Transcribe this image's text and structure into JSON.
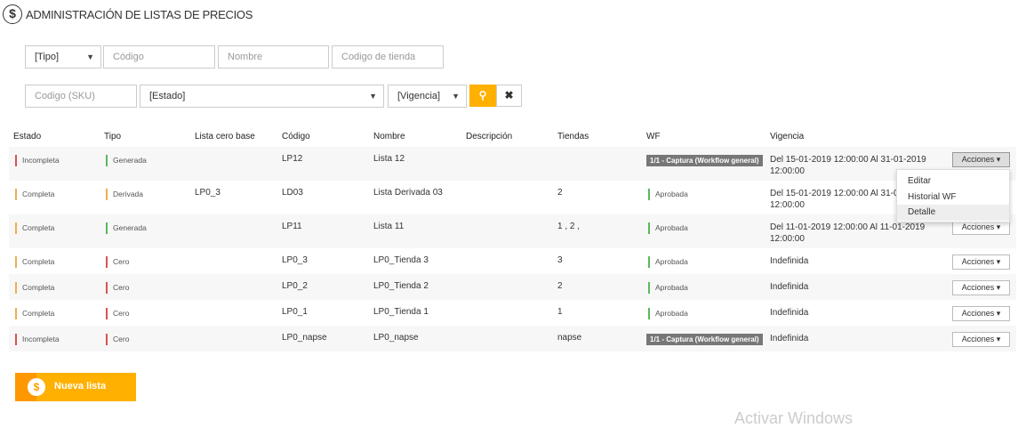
{
  "header": {
    "icon": "dollar-icon",
    "title": "ADMINISTRACIÓN DE LISTAS DE PRECIOS"
  },
  "filters": {
    "tipo": "[Tipo]",
    "codigo_ph": "Código",
    "nombre_ph": "Nombre",
    "tienda_ph": "Codigo de tienda",
    "sku_ph": "Codigo (SKU)",
    "estado": "[Estado]",
    "vigencia": "[Vigencia]",
    "search_icon": "search-icon",
    "clear_icon": "close-icon"
  },
  "table": {
    "columns": [
      "Estado",
      "Tipo",
      "Lista cero base",
      "Código",
      "Nombre",
      "Descripción",
      "Tiendas",
      "WF",
      "Vigencia"
    ],
    "rows": [
      {
        "estado": "Incompleta",
        "estado_color": "#d9534f",
        "tipo": "Generada",
        "tipo_color": "#5cb85c",
        "base": "",
        "codigo": "LP12",
        "nombre": "Lista 12",
        "descripcion": "",
        "tiendas": "",
        "wf": "1/1 - Captura (Workflow general)",
        "wf_badge": true,
        "vigencia": "Del 15-01-2019 12:00:00 Al 31-01-2019 12:00:00",
        "acciones": "Acciones"
      },
      {
        "estado": "Completa",
        "estado_color": "#f0ad4e",
        "tipo": "Derivada",
        "tipo_color": "#f0ad4e",
        "base": "LP0_3",
        "codigo": "LD03",
        "nombre": "Lista Derivada 03",
        "descripcion": "",
        "tiendas": "2",
        "wf": "Aprobada",
        "wf_badge": false,
        "vigencia": "Del 15-01-2019 12:00:00 Al 31-01-2019 12:00:00",
        "acciones": "Acciones"
      },
      {
        "estado": "Completa",
        "estado_color": "#f0ad4e",
        "tipo": "Generada",
        "tipo_color": "#5cb85c",
        "base": "",
        "codigo": "LP11",
        "nombre": "Lista 11",
        "descripcion": "",
        "tiendas": "1 , 2 ,",
        "wf": "Aprobada",
        "wf_badge": false,
        "vigencia": "Del 11-01-2019 12:00:00 Al 11-01-2019 12:00:00",
        "acciones": "Acciones"
      },
      {
        "estado": "Completa",
        "estado_color": "#f0ad4e",
        "tipo": "Cero",
        "tipo_color": "#d9534f",
        "base": "",
        "codigo": "LP0_3",
        "nombre": "LP0_Tienda 3",
        "descripcion": "",
        "tiendas": "3",
        "wf": "Aprobada",
        "wf_badge": false,
        "vigencia": "Indefinida",
        "acciones": "Acciones"
      },
      {
        "estado": "Completa",
        "estado_color": "#f0ad4e",
        "tipo": "Cero",
        "tipo_color": "#d9534f",
        "base": "",
        "codigo": "LP0_2",
        "nombre": "LP0_Tienda 2",
        "descripcion": "",
        "tiendas": "2",
        "wf": "Aprobada",
        "wf_badge": false,
        "vigencia": "Indefinida",
        "acciones": "Acciones"
      },
      {
        "estado": "Completa",
        "estado_color": "#f0ad4e",
        "tipo": "Cero",
        "tipo_color": "#d9534f",
        "base": "",
        "codigo": "LP0_1",
        "nombre": "LP0_Tienda 1",
        "descripcion": "",
        "tiendas": "1",
        "wf": "Aprobada",
        "wf_badge": false,
        "vigencia": "Indefinida",
        "acciones": "Acciones"
      },
      {
        "estado": "Incompleta",
        "estado_color": "#d9534f",
        "tipo": "Cero",
        "tipo_color": "#d9534f",
        "base": "",
        "codigo": "LP0_napse",
        "nombre": "LP0_napse",
        "descripcion": "",
        "tiendas": "napse",
        "wf": "1/1 - Captura (Workflow general)",
        "wf_badge": true,
        "vigencia": "Indefinida",
        "acciones": "Acciones"
      }
    ]
  },
  "menu": {
    "items": [
      "Editar",
      "Historial WF",
      "Detalle"
    ],
    "highlighted": "Detalle"
  },
  "new_button": {
    "label": "Nueva lista",
    "icon": "dollar-icon"
  },
  "watermark": "Activar Windows",
  "colors": {
    "accent": "#ffb000",
    "accent_dark": "#ff9800"
  }
}
